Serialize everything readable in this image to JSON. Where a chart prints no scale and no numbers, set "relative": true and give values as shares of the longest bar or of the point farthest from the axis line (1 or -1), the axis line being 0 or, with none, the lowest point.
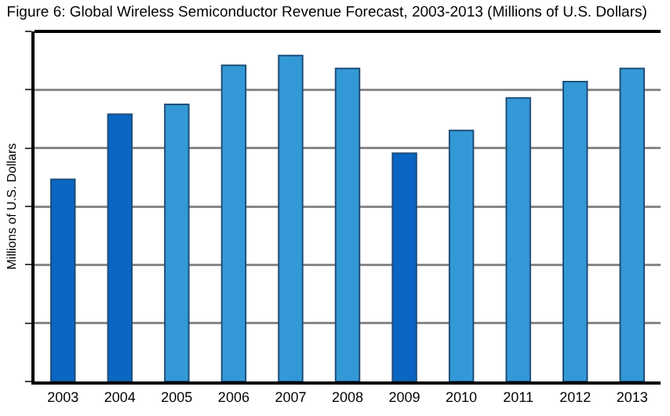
{
  "chart_data": {
    "type": "bar",
    "title": "Figure 6: Global Wireless Semiconductor Revenue Forecast, 2003-2013 (Millions of U.S. Dollars)",
    "ylabel": "Millions of U.S. Dollars",
    "categories": [
      "2003",
      "2004",
      "2005",
      "2006",
      "2007",
      "2008",
      "2009",
      "2010",
      "2011",
      "2012",
      "2013"
    ],
    "values": [
      0.62,
      0.82,
      0.85,
      0.97,
      1,
      0.96,
      0.7,
      0.77,
      0.87,
      0.92,
      0.96
    ],
    "colors": [
      "#0a66c2",
      "#0a66c2",
      "#3399d6",
      "#3399d6",
      "#3399d6",
      "#3399d6",
      "#0a66c2",
      "#3399d6",
      "#3399d6",
      "#3399d6",
      "#3399d6"
    ],
    "relative": true,
    "grid": "y"
  }
}
